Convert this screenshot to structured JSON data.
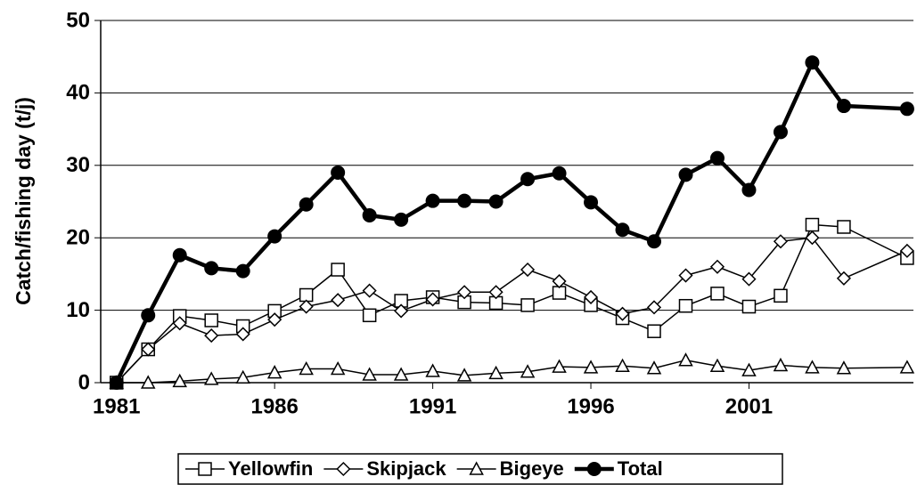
{
  "chart_data": {
    "type": "line",
    "y_label": "Catch/fishing day (t/j)",
    "x": [
      1981,
      1982,
      1983,
      1984,
      1985,
      1986,
      1987,
      1988,
      1989,
      1990,
      1991,
      1992,
      1993,
      1994,
      1995,
      1996,
      1997,
      1998,
      1999,
      2000,
      2001,
      2002,
      2003,
      2004,
      2006
    ],
    "xlim": [
      1980.5,
      2006.2
    ],
    "xticks": [
      1981,
      1986,
      1991,
      1996,
      2001
    ],
    "ylim": [
      0,
      50
    ],
    "yticks": [
      0,
      10,
      20,
      30,
      40,
      50
    ],
    "grid": true,
    "legend": "bottom",
    "series": [
      {
        "name": "Yellowfin",
        "color": "#000000",
        "marker": "square",
        "values": [
          0,
          4.6,
          9.2,
          8.6,
          7.8,
          9.9,
          12.1,
          15.6,
          9.3,
          11.3,
          11.8,
          11.1,
          11,
          10.7,
          12.4,
          10.7,
          8.9,
          7.1,
          10.6,
          12.3,
          10.5,
          12,
          21.8,
          21.5,
          17.2
        ]
      },
      {
        "name": "Skipjack",
        "color": "#000000",
        "marker": "diamond",
        "values": [
          0,
          4.6,
          8.2,
          6.5,
          6.7,
          8.7,
          10.5,
          11.4,
          12.7,
          9.9,
          11.5,
          12.5,
          12.5,
          15.6,
          14,
          11.8,
          9.5,
          10.4,
          14.8,
          16,
          14.3,
          19.5,
          20,
          14.4,
          18.2
        ]
      },
      {
        "name": "Bigeye",
        "color": "#000000",
        "marker": "triangle",
        "values": [
          0,
          0,
          0.2,
          0.5,
          0.7,
          1.4,
          1.9,
          1.9,
          1.1,
          1.1,
          1.6,
          1,
          1.3,
          1.5,
          2.2,
          2.1,
          2.3,
          2,
          3.1,
          2.3,
          1.7,
          2.4,
          2.1,
          2,
          2.1
        ]
      },
      {
        "name": "Total",
        "color": "#000000",
        "marker": "circle",
        "values": [
          0,
          9.3,
          17.6,
          15.8,
          15.4,
          20.2,
          24.6,
          29,
          23.1,
          22.5,
          25.1,
          25.1,
          25,
          28.1,
          28.9,
          24.9,
          21.1,
          19.5,
          28.7,
          31,
          26.6,
          34.6,
          44.2,
          38.2,
          37.8
        ]
      }
    ]
  }
}
